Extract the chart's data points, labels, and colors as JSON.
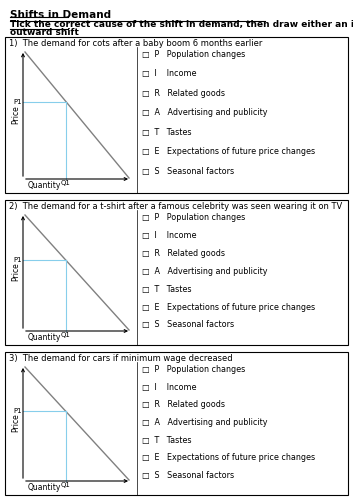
{
  "title": "Shifts in Demand",
  "subtitle_line1": "Tick the correct cause of the shift in demand, then draw either an inward shift or an",
  "subtitle_line2": "outward shift",
  "questions": [
    "1)  The demand for cots after a baby boom 6 months earlier",
    "2)  The demand for a t-shirt after a famous celebrity was seen wearing it on TV",
    "3)  The demand for cars if minimum wage decreased"
  ],
  "options": [
    "□  P   Population changes",
    "□  I    Income",
    "□  R   Related goods",
    "□  A   Advertising and publicity",
    "□  T   Tastes",
    "□  E   Expectations of future price changes",
    "□  S   Seasonal factors"
  ],
  "bg_color": "#ffffff",
  "box_color": "#000000",
  "demand_line_color": "#808080",
  "indicator_line_color": "#87CEEB",
  "title_fontsize": 7.5,
  "subtitle_fontsize": 6.5,
  "question_fontsize": 6.0,
  "option_fontsize": 5.8,
  "axis_label_fontsize": 5.5,
  "p1_q1_fontsize": 5.0
}
